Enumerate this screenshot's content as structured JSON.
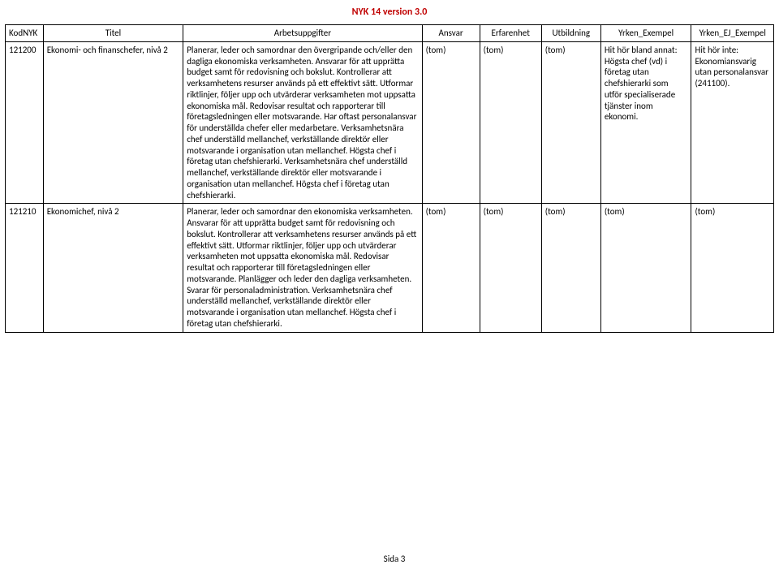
{
  "doc_title": "NYK 14 version 3.0",
  "footer": "Sida 3",
  "columns": {
    "kod": "KodNYK",
    "titel": "Titel",
    "arb": "Arbetsuppgifter",
    "ansvar": "Ansvar",
    "erf": "Erfarenhet",
    "utb": "Utbildning",
    "yrk": "Yrken_Exempel",
    "ej": "Yrken_EJ_Exempel"
  },
  "rows": [
    {
      "kod": "121200",
      "titel": "Ekonomi- och finanschefer, nivå 2",
      "arb": "Planerar, leder och samordnar den övergripande och/eller den dagliga ekonomiska verksamheten. Ansvarar för att upprätta budget samt för redovisning och bokslut. Kontrollerar att verksamhetens resurser används på ett effektivt sätt. Utformar riktlinjer, följer upp och utvärderar verksamheten mot uppsatta ekonomiska mål. Redovisar resultat och rapporterar till företagsledningen eller motsvarande. Har oftast personalansvar för underställda chefer eller medarbetare. Verksamhetsnära chef underställd mellanchef, verkställande direktör eller motsvarande i organisation utan mellanchef. Högsta chef i företag utan chefshierarki. Verksamhetsnära chef underställd mellanchef, verkställande direktör eller motsvarande i organisation utan mellanchef. Högsta chef i företag utan chefshierarki.",
      "ansvar": "(tom)",
      "erf": "(tom)",
      "utb": "(tom)",
      "yrk": "Hit hör bland annat: Högsta chef (vd) i företag utan chefshierarki som utför specialiserade tjänster inom ekonomi.",
      "ej": "Hit hör inte: Ekonomiansvarig utan personalansvar (241100)."
    },
    {
      "kod": "121210",
      "titel": "Ekonomichef, nivå 2",
      "arb": "Planerar, leder och samordnar den ekonomiska verksamheten. Ansvarar för att upprätta budget samt för redovisning och bokslut. Kontrollerar att verksamhetens resurser används på ett effektivt sätt. Utformar riktlinjer, följer upp och utvärderar verksamheten mot uppsatta ekonomiska mål. Redovisar resultat och rapporterar till företagsledningen eller motsvarande. Planlägger och leder den dagliga verksamheten. Svarar för personaladministration. Verksamhetsnära chef underställd mellanchef, verkställande direktör eller motsvarande i organisation utan mellanchef. Högsta chef i företag utan chefshierarki.",
      "ansvar": "(tom)",
      "erf": "(tom)",
      "utb": "(tom)",
      "yrk": "(tom)",
      "ej": "(tom)"
    }
  ]
}
